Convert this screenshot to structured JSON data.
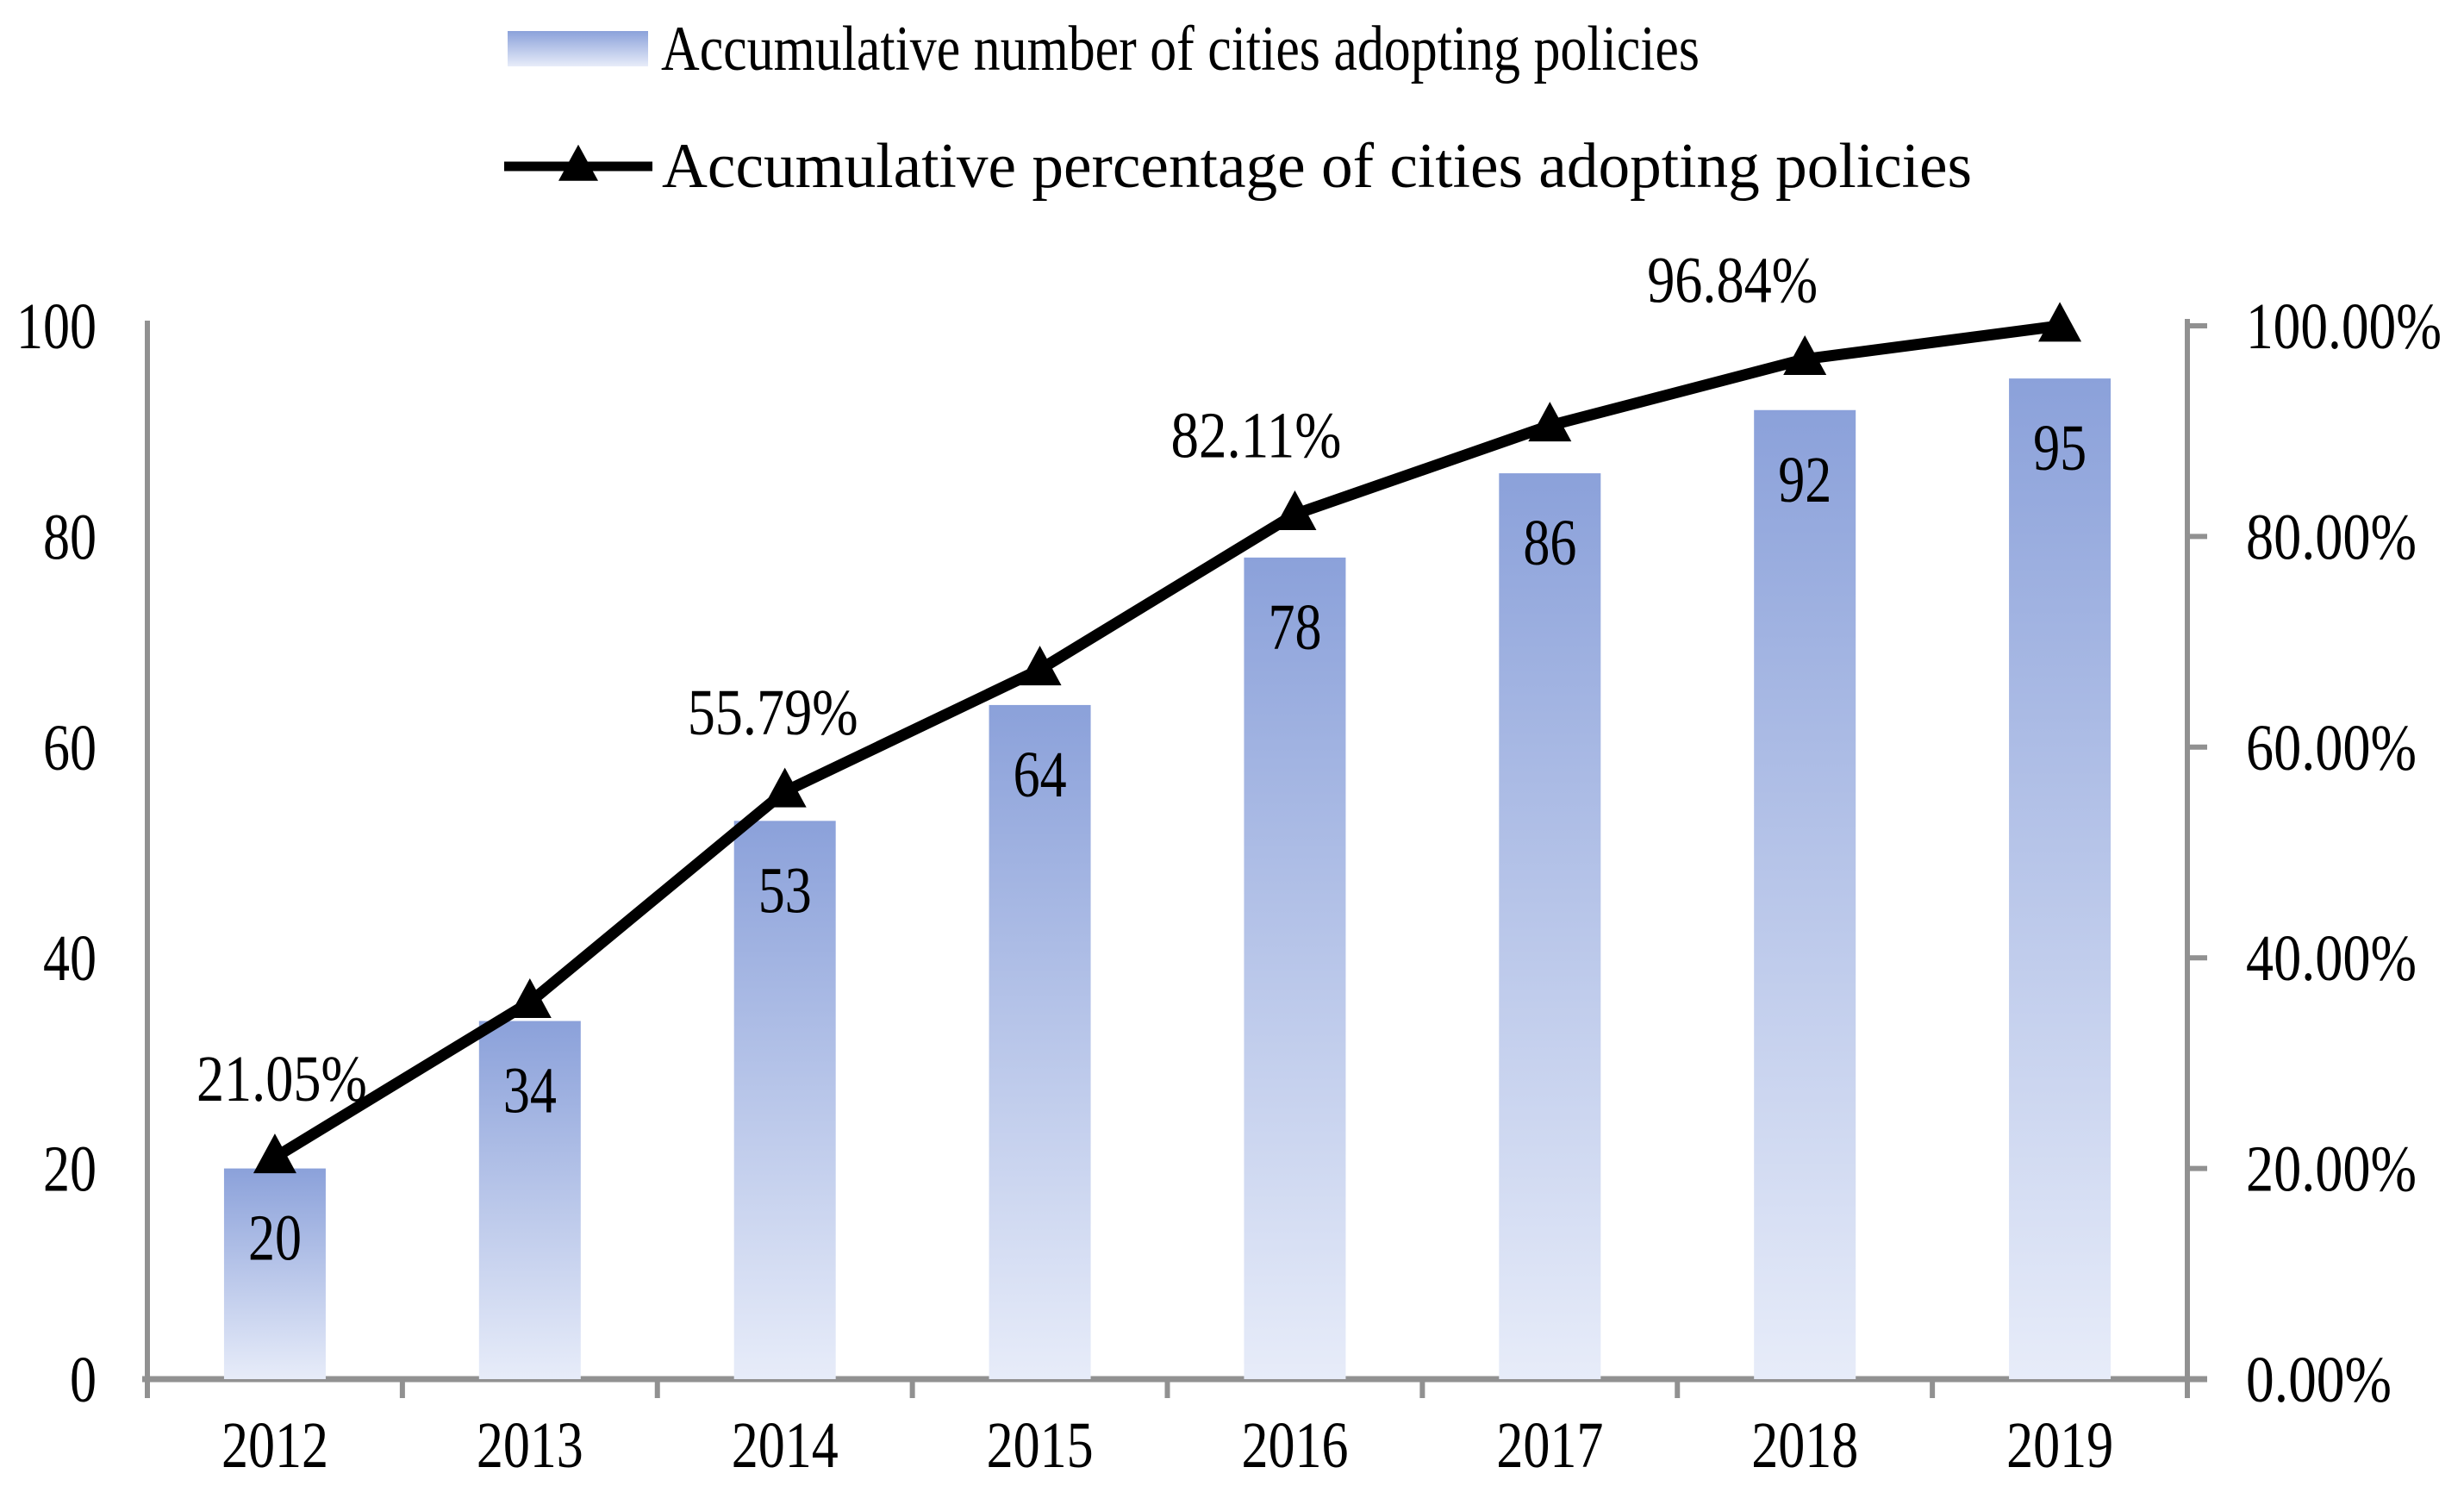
{
  "chart_data": {
    "type": "bar+line",
    "categories": [
      "2012",
      "2013",
      "2014",
      "2015",
      "2016",
      "2017",
      "2018",
      "2019"
    ],
    "series": [
      {
        "name": "Accumulative number of cities adopting policies",
        "type": "bar",
        "axis": "left",
        "values": [
          20,
          34,
          53,
          64,
          78,
          86,
          92,
          95
        ]
      },
      {
        "name": "Accumulative percentage of cities adopting policies",
        "type": "line",
        "axis": "right",
        "values": [
          21.05,
          35.79,
          55.79,
          67.37,
          82.11,
          90.53,
          96.84,
          100.0
        ]
      }
    ],
    "bar_value_labels": [
      "20",
      "34",
      "53",
      "64",
      "78",
      "86",
      "92",
      "95"
    ],
    "line_annotations": [
      {
        "category": "2012",
        "text": "21.05%"
      },
      {
        "category": "2014",
        "text": "55.79%"
      },
      {
        "category": "2016",
        "text": "82.11%"
      },
      {
        "category": "2018",
        "text": "96.84%"
      }
    ],
    "left_axis": {
      "range": [
        0,
        100
      ],
      "tick_labels": [
        "0",
        "20",
        "40",
        "60",
        "80",
        "100"
      ]
    },
    "right_axis": {
      "range": [
        0,
        100
      ],
      "tick_labels": [
        "0.00%",
        "20.00%",
        "40.00%",
        "60.00%",
        "80.00%",
        "100.00%"
      ]
    },
    "grid": "off",
    "legend_position": "top",
    "title": ""
  },
  "legend": {
    "items": [
      {
        "marker": "gradient-bar-swatch",
        "label": "Accumulative number of cities adopting policies"
      },
      {
        "marker": "black-line-triangle",
        "label": "Accumulative percentage of cities adopting policies"
      }
    ]
  },
  "colors": {
    "bar_gradient_top": "#8BA1DA",
    "bar_gradient_bottom": "#E7ECF9",
    "line": "#000000",
    "axis": "#919191",
    "text": "#000000",
    "background": "#FFFFFF"
  }
}
